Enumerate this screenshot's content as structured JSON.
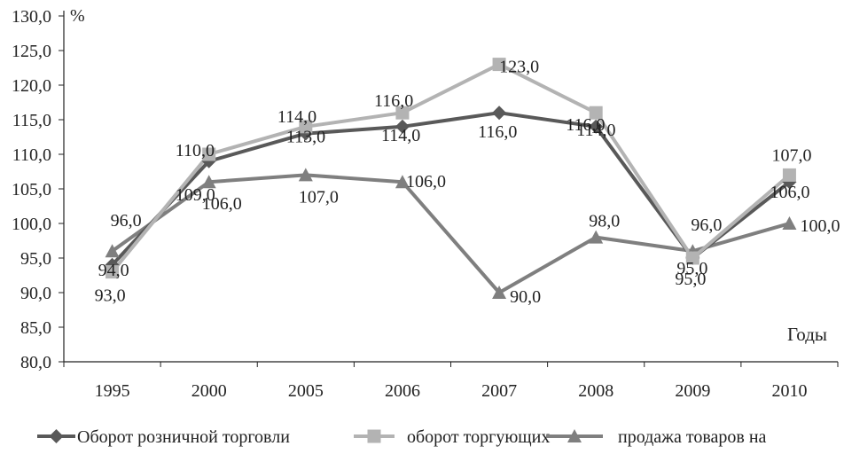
{
  "chart_data": {
    "type": "line",
    "categories": [
      "1995",
      "2000",
      "2005",
      "2006",
      "2007",
      "2008",
      "2009",
      "2010"
    ],
    "ylim": [
      80,
      130
    ],
    "yticks": [
      80,
      85,
      90,
      95,
      100,
      105,
      110,
      115,
      120,
      125,
      130
    ],
    "ylabel": "%",
    "xlabel": "Годы",
    "grid": false,
    "legend_position": "bottom",
    "series": [
      {
        "name": "Оборот розничной торговли",
        "values": [
          94,
          109,
          113,
          114,
          116,
          114,
          95,
          106
        ],
        "labels": [
          "94,0",
          "109,0",
          "113,0",
          "114,0",
          "116,0",
          "114,0",
          "95,0",
          "106,0"
        ],
        "color": "#595959",
        "marker": "diamond"
      },
      {
        "name": "оборот торгующих",
        "values": [
          93,
          110,
          114,
          116,
          123,
          116,
          95,
          107
        ],
        "labels": [
          "93,0",
          "110,0",
          "114,0",
          "116,0",
          "123,0",
          "116,0",
          "95,0",
          "107,0"
        ],
        "color": "#b3b3b3",
        "marker": "square"
      },
      {
        "name": "продажа товаров на",
        "values": [
          96,
          106,
          107,
          106,
          90,
          98,
          96,
          100
        ],
        "labels": [
          "96,0",
          "106,0",
          "107,0",
          "106,0",
          "90,0",
          "98,0",
          "96,0",
          "100,0"
        ],
        "color": "#7f7f7f",
        "marker": "triangle"
      }
    ]
  }
}
